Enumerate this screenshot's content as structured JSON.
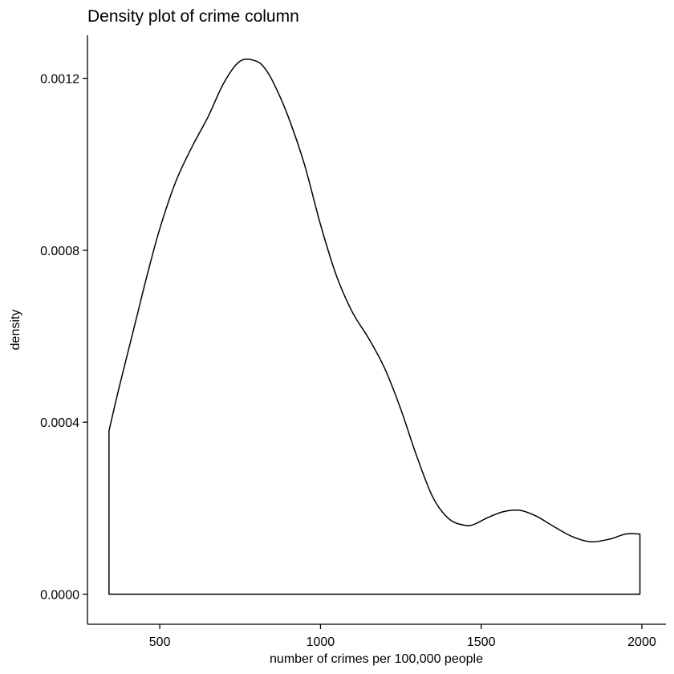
{
  "chart_data": {
    "type": "area",
    "title": "Density plot of crime column",
    "xlabel": "number of crimes per 100,000 people",
    "ylabel": "density",
    "xlim": [
      275,
      2075
    ],
    "ylim": [
      -7e-05,
      0.0013
    ],
    "x_ticks": [
      500,
      1000,
      1500,
      2000
    ],
    "x_tick_labels": [
      "500",
      "1000",
      "1500",
      "2000"
    ],
    "y_ticks": [
      0,
      0.0004,
      0.0008,
      0.0012
    ],
    "y_tick_labels": [
      "0.0000",
      "0.0004",
      "0.0008",
      "0.0012"
    ],
    "grid": false,
    "legend": "none",
    "series": [
      {
        "fill": "none",
        "stroke": "#000000",
        "x": [
          342,
          370,
          400,
          430,
          460,
          500,
          550,
          600,
          650,
          700,
          750,
          800,
          830,
          860,
          900,
          950,
          1000,
          1050,
          1100,
          1150,
          1200,
          1250,
          1300,
          1350,
          1400,
          1450,
          1480,
          1520,
          1570,
          1620,
          1670,
          1720,
          1780,
          1840,
          1900,
          1950,
          1994
        ],
        "y": [
          0.00038,
          0.00047,
          0.00056,
          0.00065,
          0.00074,
          0.00085,
          0.00096,
          0.00104,
          0.00111,
          0.00119,
          0.00124,
          0.00124,
          0.00122,
          0.00118,
          0.00111,
          0.001,
          0.00086,
          0.00074,
          0.000655,
          0.000595,
          0.000525,
          0.00043,
          0.00032,
          0.000225,
          0.000175,
          0.00016,
          0.000163,
          0.000178,
          0.000192,
          0.000195,
          0.000182,
          0.00016,
          0.000135,
          0.000122,
          0.000128,
          0.00014,
          0.00014
        ]
      }
    ]
  }
}
